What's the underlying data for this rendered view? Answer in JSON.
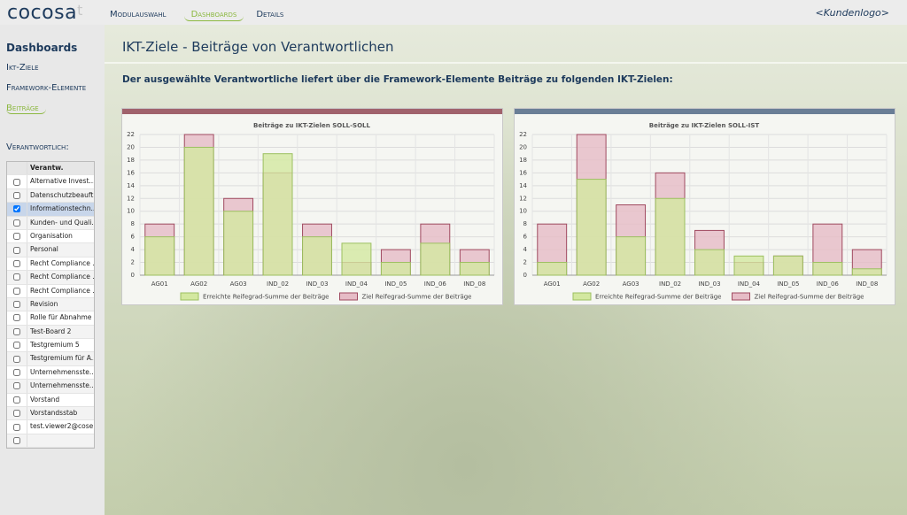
{
  "header": {
    "logo": "cocosa",
    "logo_suffix": "t",
    "nav": [
      "Modulauswahl",
      "Dashboards",
      "Details"
    ],
    "active_nav": 1,
    "customer_logo": "<Kundenlogo>"
  },
  "sidebar": {
    "title": "Dashboards",
    "links": [
      "Ikt-Ziele",
      "Framework-Elemente",
      "Beiträge"
    ],
    "active_link": 2,
    "filter_label": "Verantwortlich:",
    "list_header": "Verantw.",
    "items": [
      "Alternative Invest...",
      "Datenschutzbeauft...",
      "Informationstechn...",
      "Kunden- und Quali...",
      "Organisation",
      "Personal",
      "Recht Compliance ...",
      "Recht Compliance ...",
      "Recht Compliance ...",
      "Revision",
      "Rolle für Abnahme ...",
      "Test-Board 2",
      "Testgremium 5",
      "Testgremium für A...",
      "Unternehmensste...",
      "Unternehmensste...",
      "Vorstand",
      "Vorstandsstab",
      "test.viewer2@cose..."
    ],
    "selected": 2
  },
  "main": {
    "title": "IKT-Ziele - Beiträge von Verantwortlichen",
    "subtitle": "Der ausgewählte Verantwortliche liefert über die Framework-Elemente Beiträge zu folgenden IKT-Zielen:"
  },
  "chart_data": [
    {
      "type": "bar",
      "title": "Beiträge zu IKT-Zielen SOLL-SOLL",
      "header_color": "#a0626c",
      "categories": [
        "AG01",
        "AG02",
        "AG03",
        "IND_02",
        "IND_03",
        "IND_04",
        "IND_05",
        "IND_06",
        "IND_08"
      ],
      "series": [
        {
          "name": "Erreichte Reifegrad-Summe der Beiträge",
          "color": "#d3e8a0",
          "border": "#9cc060",
          "values": [
            6,
            20,
            10,
            19,
            6,
            5,
            2,
            5,
            2
          ]
        },
        {
          "name": "Ziel Reifegrad-Summe der Beiträge",
          "color": "#e6bcc6",
          "border": "#a04a60",
          "values": [
            8,
            22,
            12,
            16,
            8,
            2,
            4,
            8,
            4
          ]
        }
      ],
      "ylim": [
        0,
        22
      ],
      "yticks": [
        0,
        2,
        4,
        6,
        8,
        10,
        12,
        14,
        16,
        18,
        20,
        22
      ],
      "grid": true
    },
    {
      "type": "bar",
      "title": "Beiträge zu IKT-Zielen SOLL-IST",
      "header_color": "#6a7e96",
      "categories": [
        "AG01",
        "AG02",
        "AG03",
        "IND_02",
        "IND_03",
        "IND_04",
        "IND_05",
        "IND_06",
        "IND_08"
      ],
      "series": [
        {
          "name": "Erreichte Reifegrad-Summe der Beiträge",
          "color": "#d3e8a0",
          "border": "#9cc060",
          "values": [
            2,
            15,
            6,
            12,
            4,
            3,
            3,
            2,
            1
          ]
        },
        {
          "name": "Ziel Reifegrad-Summe der Beiträge",
          "color": "#e6bcc6",
          "border": "#a04a60",
          "values": [
            8,
            22,
            11,
            16,
            7,
            2,
            3,
            8,
            4
          ]
        }
      ],
      "ylim": [
        0,
        22
      ],
      "yticks": [
        0,
        2,
        4,
        6,
        8,
        10,
        12,
        14,
        16,
        18,
        20,
        22
      ],
      "grid": true
    }
  ]
}
